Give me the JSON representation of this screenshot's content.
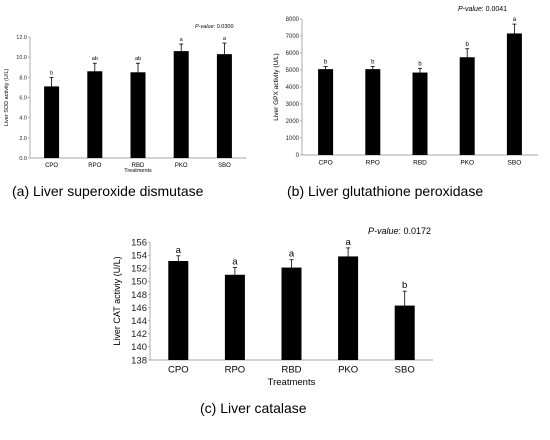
{
  "chart_data": [
    {
      "type": "bar",
      "caption": "(a) Liver superoxide dismutase",
      "p_label": "P-value",
      "p_value": ": 0.0300",
      "ylabel": "Liver SOD activity (U/L)",
      "xlabel": "Treatments",
      "categories": [
        "CPO",
        "RPO",
        "RBD",
        "PKO",
        "SBO"
      ],
      "values": [
        7.1,
        8.6,
        8.5,
        10.6,
        10.3
      ],
      "errors": [
        0.9,
        0.8,
        0.9,
        0.7,
        1.1
      ],
      "letters": [
        "b",
        "ab",
        "ab",
        "a",
        "a"
      ],
      "ylim": [
        0,
        12
      ],
      "yticks": [
        "0.0",
        "2.0",
        "4.0",
        "6.0",
        "8.0",
        "10.0",
        "12.0"
      ],
      "grid": false,
      "bar_color": "#000000"
    },
    {
      "type": "bar",
      "caption": "(b) Liver glutathione peroxidase",
      "p_label": "P-value",
      "p_value": ": 0.0041",
      "ylabel": "Liver GPX activity (U/L)",
      "xlabel": "",
      "categories": [
        "CPO",
        "RPO",
        "RBD",
        "PKO",
        "SBO"
      ],
      "values": [
        5050,
        5050,
        4850,
        5750,
        7150
      ],
      "errors": [
        150,
        150,
        250,
        500,
        550
      ],
      "letters": [
        "b",
        "b",
        "b",
        "b",
        "a"
      ],
      "ylim": [
        0,
        8000
      ],
      "yticks": [
        "0",
        "1000",
        "2000",
        "3000",
        "4000",
        "5000",
        "6000",
        "7000",
        "8000"
      ],
      "grid": false,
      "bar_color": "#000000"
    },
    {
      "type": "bar",
      "caption": "(c) Liver catalase",
      "p_label": "P-value",
      "p_value": ": 0.0172",
      "ylabel": "Liver CAT activiy (U/L)",
      "xlabel": "Treatments",
      "categories": [
        "CPO",
        "RPO",
        "RBD",
        "PKO",
        "SBO"
      ],
      "values": [
        153.1,
        151.0,
        152.1,
        153.8,
        146.3
      ],
      "errors": [
        0.8,
        1.1,
        1.2,
        1.3,
        2.2
      ],
      "letters": [
        "a",
        "a",
        "a",
        "a",
        "b"
      ],
      "ylim": [
        138,
        156
      ],
      "yticks": [
        "138",
        "140",
        "142",
        "144",
        "146",
        "148",
        "150",
        "152",
        "154",
        "156"
      ],
      "grid": false,
      "bar_color": "#000000"
    }
  ]
}
